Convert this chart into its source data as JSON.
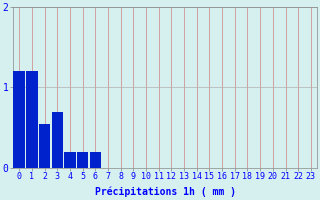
{
  "xlabel": "Précipitations 1h ( mm )",
  "categories": [
    0,
    1,
    2,
    3,
    4,
    5,
    6,
    7,
    8,
    9,
    10,
    11,
    12,
    13,
    14,
    15,
    16,
    17,
    18,
    19,
    20,
    21,
    22,
    23
  ],
  "values": [
    1.2,
    1.2,
    0.55,
    0.7,
    0.2,
    0.2,
    0.2,
    0,
    0,
    0,
    0,
    0,
    0,
    0,
    0,
    0,
    0,
    0,
    0,
    0,
    0,
    0,
    0,
    0
  ],
  "bar_color": "#0022cc",
  "bg_color": "#d6f0f0",
  "grid_color_x": "#d08080",
  "grid_color_y": "#b0b0b0",
  "ylim": [
    0,
    2
  ],
  "yticks": [
    0,
    1,
    2
  ],
  "xlabel_fontsize": 7,
  "tick_fontsize": 6,
  "bar_width": 0.9
}
